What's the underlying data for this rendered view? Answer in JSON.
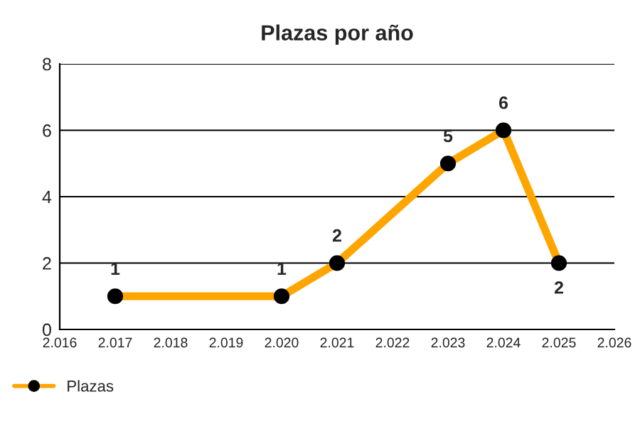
{
  "chart_data": {
    "type": "line",
    "title": "Plazas por año",
    "x": [
      2017,
      2020,
      2021,
      2023,
      2024,
      2025
    ],
    "series": [
      {
        "name": "Plazas",
        "color": "#ffa500",
        "values": [
          1,
          1,
          2,
          5,
          6,
          2
        ]
      }
    ],
    "xlim": [
      2016,
      2026
    ],
    "xticks": [
      {
        "value": 2016,
        "label": "2.016"
      },
      {
        "value": 2017,
        "label": "2.017"
      },
      {
        "value": 2018,
        "label": "2.018"
      },
      {
        "value": 2019,
        "label": "2.019"
      },
      {
        "value": 2020,
        "label": "2.020"
      },
      {
        "value": 2021,
        "label": "2.021"
      },
      {
        "value": 2022,
        "label": "2.022"
      },
      {
        "value": 2023,
        "label": "2.023"
      },
      {
        "value": 2024,
        "label": "2.024"
      },
      {
        "value": 2025,
        "label": "2.025"
      },
      {
        "value": 2026,
        "label": "2.026"
      }
    ],
    "ylim": [
      0,
      8
    ],
    "yticks": [
      0,
      2,
      4,
      6,
      8
    ],
    "grid": "y",
    "legend": "bottom left",
    "marker": "circle",
    "line_style": "solid",
    "data_labels": true
  }
}
